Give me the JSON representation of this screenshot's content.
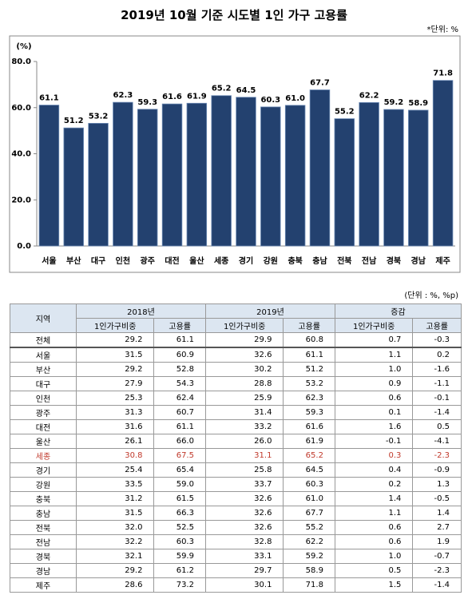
{
  "chart_data": {
    "type": "bar",
    "title": "2019년 10월 기준 시도별 1인 가구 고용률",
    "unit_note": "*단위: %",
    "y_label": "(%)",
    "categories": [
      "서울",
      "부산",
      "대구",
      "인천",
      "광주",
      "대전",
      "울산",
      "세종",
      "경기",
      "강원",
      "충북",
      "충남",
      "전북",
      "전남",
      "경북",
      "경남",
      "제주"
    ],
    "values": [
      61.1,
      51.2,
      53.2,
      62.3,
      59.3,
      61.6,
      61.9,
      65.2,
      64.5,
      60.3,
      61.0,
      67.7,
      55.2,
      62.2,
      59.2,
      58.9,
      71.8
    ],
    "value_labels": [
      "61.1",
      "51.2",
      "53.2",
      "62.3",
      "59.3",
      "61.6",
      "61.9",
      "65.2",
      "64.5",
      "60.3",
      "61.0",
      "67.7",
      "55.2",
      "62.2",
      "59.2",
      "58.9",
      "71.8"
    ],
    "color": "#23416f",
    "ylim": [
      0,
      80
    ],
    "yticks": [
      {
        "value": 0,
        "label": "0.0"
      },
      {
        "value": 20,
        "label": "20.0"
      },
      {
        "value": 40,
        "label": "40.0"
      },
      {
        "value": 60,
        "label": "60.0"
      },
      {
        "value": 80,
        "label": "80.0"
      }
    ],
    "grid": false
  },
  "table": {
    "unit_note": "(단위 : %, %p)",
    "header": [
      "지역",
      "2018년",
      "2019년",
      "증감"
    ],
    "subheader": [
      "1인가구비중",
      "고용률",
      "1인가구비중",
      "고용률",
      "1인가구비중",
      "고용률"
    ],
    "rows": [
      [
        "전체",
        "29.2",
        "61.1",
        "29.9",
        "60.8",
        "0.7",
        "-0.3"
      ],
      [
        "서울",
        "31.5",
        "60.9",
        "32.6",
        "61.1",
        "1.1",
        "0.2"
      ],
      [
        "부산",
        "29.2",
        "52.8",
        "30.2",
        "51.2",
        "1.0",
        "-1.6"
      ],
      [
        "대구",
        "27.9",
        "54.3",
        "28.8",
        "53.2",
        "0.9",
        "-1.1"
      ],
      [
        "인천",
        "25.3",
        "62.4",
        "25.9",
        "62.3",
        "0.6",
        "-0.1"
      ],
      [
        "광주",
        "31.3",
        "60.7",
        "31.4",
        "59.3",
        "0.1",
        "-1.4"
      ],
      [
        "대전",
        "31.6",
        "61.1",
        "33.2",
        "61.6",
        "1.6",
        "0.5"
      ],
      [
        "울산",
        "26.1",
        "66.0",
        "26.0",
        "61.9",
        "-0.1",
        "-4.1"
      ],
      [
        "세종",
        "30.8",
        "67.5",
        "31.1",
        "65.2",
        "0.3",
        "-2.3"
      ],
      [
        "경기",
        "25.4",
        "65.4",
        "25.8",
        "64.5",
        "0.4",
        "-0.9"
      ],
      [
        "강원",
        "33.5",
        "59.0",
        "33.7",
        "60.3",
        "0.2",
        "1.3"
      ],
      [
        "충북",
        "31.2",
        "61.5",
        "32.6",
        "61.0",
        "1.4",
        "-0.5"
      ],
      [
        "충남",
        "31.5",
        "66.3",
        "32.6",
        "67.7",
        "1.1",
        "1.4"
      ],
      [
        "전북",
        "32.0",
        "52.5",
        "32.6",
        "55.2",
        "0.6",
        "2.7"
      ],
      [
        "전남",
        "32.2",
        "60.3",
        "32.8",
        "62.2",
        "0.6",
        "1.9"
      ],
      [
        "경북",
        "32.1",
        "59.9",
        "33.1",
        "59.2",
        "1.0",
        "-0.7"
      ],
      [
        "경남",
        "29.2",
        "61.2",
        "29.7",
        "58.9",
        "0.5",
        "-2.3"
      ],
      [
        "제주",
        "28.6",
        "73.2",
        "30.1",
        "71.8",
        "1.5",
        "-1.4"
      ]
    ],
    "highlight": {
      "row": 8,
      "color": "#c0392b"
    }
  }
}
